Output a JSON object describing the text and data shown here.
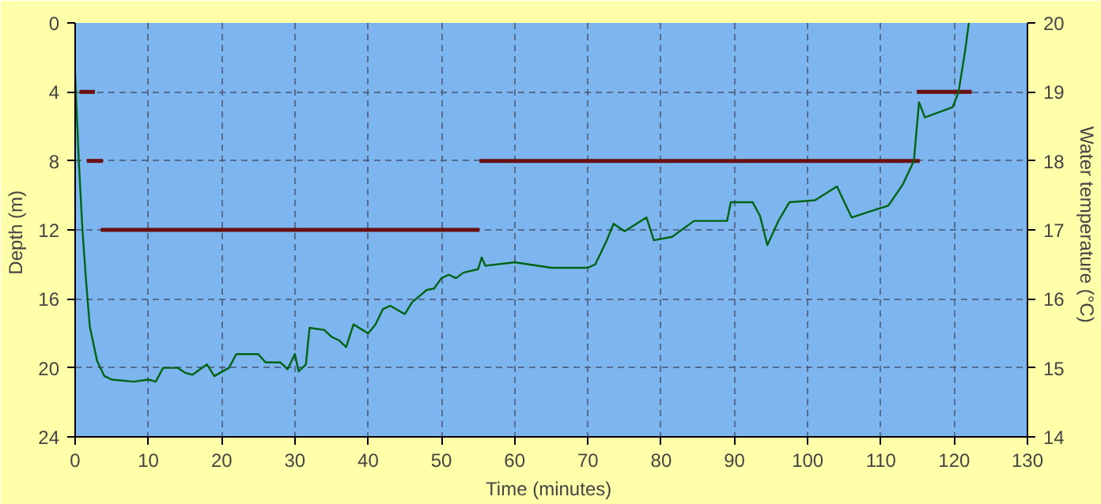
{
  "chart_data": {
    "type": "line",
    "xlabel": "Time  (minutes)",
    "ylabel": "Depth  (m)",
    "y2label": "Water  temperature  (°C)",
    "xlim": [
      0,
      130
    ],
    "xticks": [
      0,
      10,
      20,
      30,
      40,
      50,
      60,
      70,
      80,
      90,
      100,
      110,
      120,
      130
    ],
    "ylim": [
      24,
      0
    ],
    "yticks": [
      0,
      4,
      8,
      12,
      16,
      20,
      24
    ],
    "y2lim": [
      14,
      20
    ],
    "y2ticks": [
      14,
      15,
      16,
      17,
      18,
      19,
      20
    ],
    "grid": true,
    "line_style": "solid",
    "marker": "none",
    "series": [
      {
        "color": "#6b1010",
        "x": [
          0.6,
          2.7
        ],
        "values": [
          4,
          4
        ]
      },
      {
        "color": "#6b1010",
        "x": [
          1.6,
          3.8
        ],
        "values": [
          8,
          8
        ]
      },
      {
        "color": "#6b1010",
        "x": [
          3.5,
          55.2
        ],
        "values": [
          12,
          12
        ]
      },
      {
        "color": "#6b1010",
        "x": [
          55.2,
          115.3
        ],
        "values": [
          8,
          8
        ]
      },
      {
        "color": "#6b1010",
        "x": [
          114.9,
          122.4
        ],
        "values": [
          4,
          4
        ]
      },
      {
        "color": "#006414",
        "axis": "y2",
        "x": [
          0,
          0.5,
          1,
          1.5,
          2,
          3,
          4,
          5,
          8,
          10,
          11,
          12,
          14,
          15,
          16,
          18,
          19,
          21,
          22,
          25,
          26,
          28,
          29,
          30,
          30.5,
          31.5,
          32,
          34,
          35,
          36,
          37,
          38,
          40,
          41,
          42,
          43,
          45,
          46,
          48,
          49,
          50,
          51,
          52,
          53,
          55,
          55.5,
          56,
          60,
          65,
          70,
          71,
          72.5,
          73.5,
          75,
          78,
          79,
          81.5,
          84.5,
          89,
          89.5,
          92.5,
          93.5,
          94.5,
          96,
          97.5,
          101,
          104,
          106,
          108,
          111,
          113,
          114.5,
          115.2,
          116,
          119.8,
          120.6,
          121.5,
          122
        ],
        "values": [
          19.25,
          18.0,
          17.0,
          16.25,
          15.6,
          15.1,
          14.88,
          14.83,
          14.8,
          14.83,
          14.8,
          15.0,
          15.0,
          14.93,
          14.9,
          15.05,
          14.88,
          15.0,
          15.2,
          15.2,
          15.08,
          15.08,
          14.98,
          15.2,
          14.95,
          15.05,
          15.58,
          15.55,
          15.45,
          15.4,
          15.3,
          15.63,
          15.5,
          15.63,
          15.85,
          15.9,
          15.78,
          15.95,
          16.13,
          16.15,
          16.3,
          16.35,
          16.3,
          16.38,
          16.43,
          16.6,
          16.48,
          16.53,
          16.45,
          16.45,
          16.5,
          16.83,
          17.09,
          16.98,
          17.18,
          16.85,
          16.9,
          17.13,
          17.13,
          17.4,
          17.4,
          17.2,
          16.78,
          17.13,
          17.4,
          17.43,
          17.63,
          17.18,
          17.25,
          17.35,
          17.66,
          18.0,
          18.85,
          18.63,
          18.78,
          19.0,
          19.6,
          20.0
        ]
      }
    ]
  }
}
